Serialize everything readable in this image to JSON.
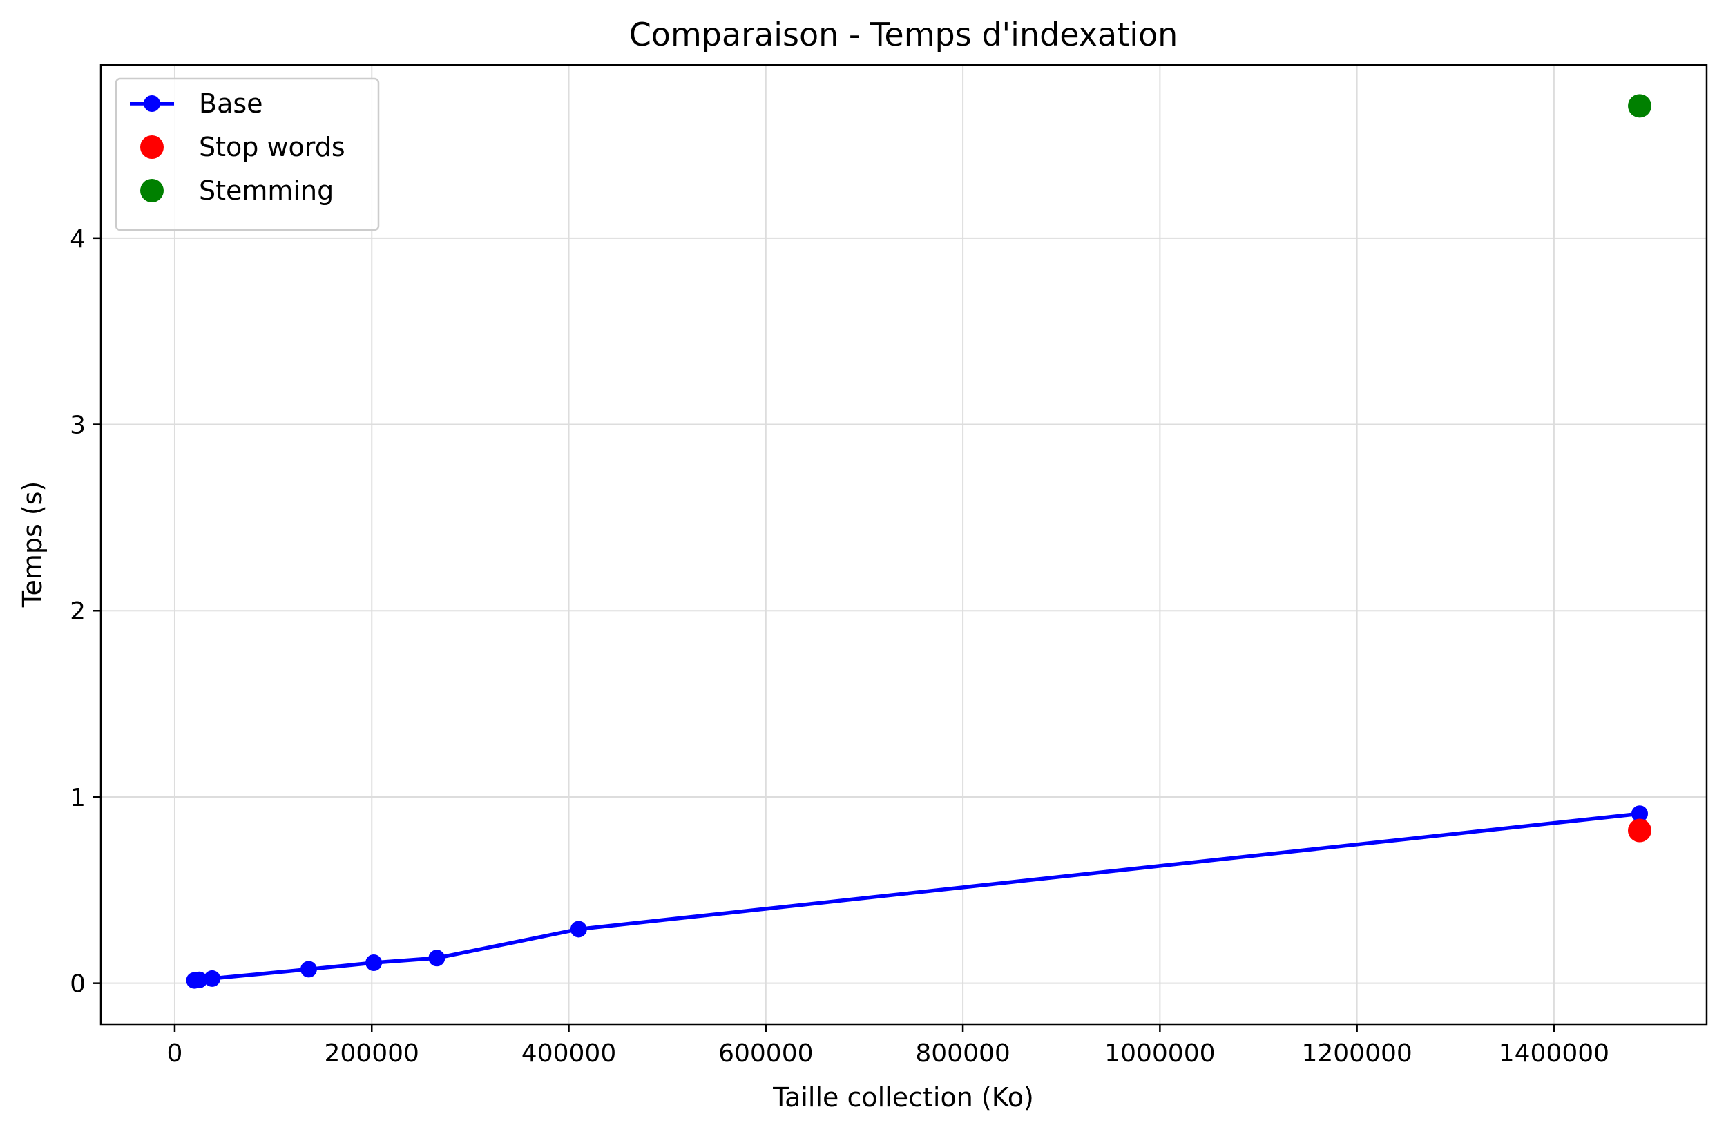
{
  "chart_data": {
    "type": "line",
    "title": "Comparaison - Temps d'indexation",
    "xlabel": "Taille collection (Ko)",
    "ylabel": "Temps (s)",
    "xlim": [
      -75000,
      1555000
    ],
    "ylim": [
      -0.22,
      4.93
    ],
    "xticks": [
      0,
      200000,
      400000,
      600000,
      800000,
      1000000,
      1200000,
      1400000
    ],
    "xtick_labels": [
      "0",
      "200000",
      "400000",
      "600000",
      "800000",
      "1000000",
      "1200000",
      "1400000"
    ],
    "yticks": [
      0,
      1,
      2,
      3,
      4
    ],
    "ytick_labels": [
      "0",
      "1",
      "2",
      "3",
      "4"
    ],
    "grid": true,
    "legend_position": "top-left",
    "series": [
      {
        "name": "Base",
        "style": "line-with-markers",
        "color": "#0000ff",
        "x": [
          20000,
          25000,
          38000,
          136000,
          202000,
          266000,
          410000,
          1487000
        ],
        "y": [
          0.015,
          0.018,
          0.025,
          0.075,
          0.11,
          0.135,
          0.29,
          0.91
        ]
      },
      {
        "name": "Stop words",
        "style": "marker-only",
        "color": "#ff0000",
        "x": [
          1487000
        ],
        "y": [
          0.82
        ]
      },
      {
        "name": "Stemming",
        "style": "marker-only",
        "color": "#008000",
        "x": [
          1487000
        ],
        "y": [
          4.71
        ]
      }
    ]
  }
}
